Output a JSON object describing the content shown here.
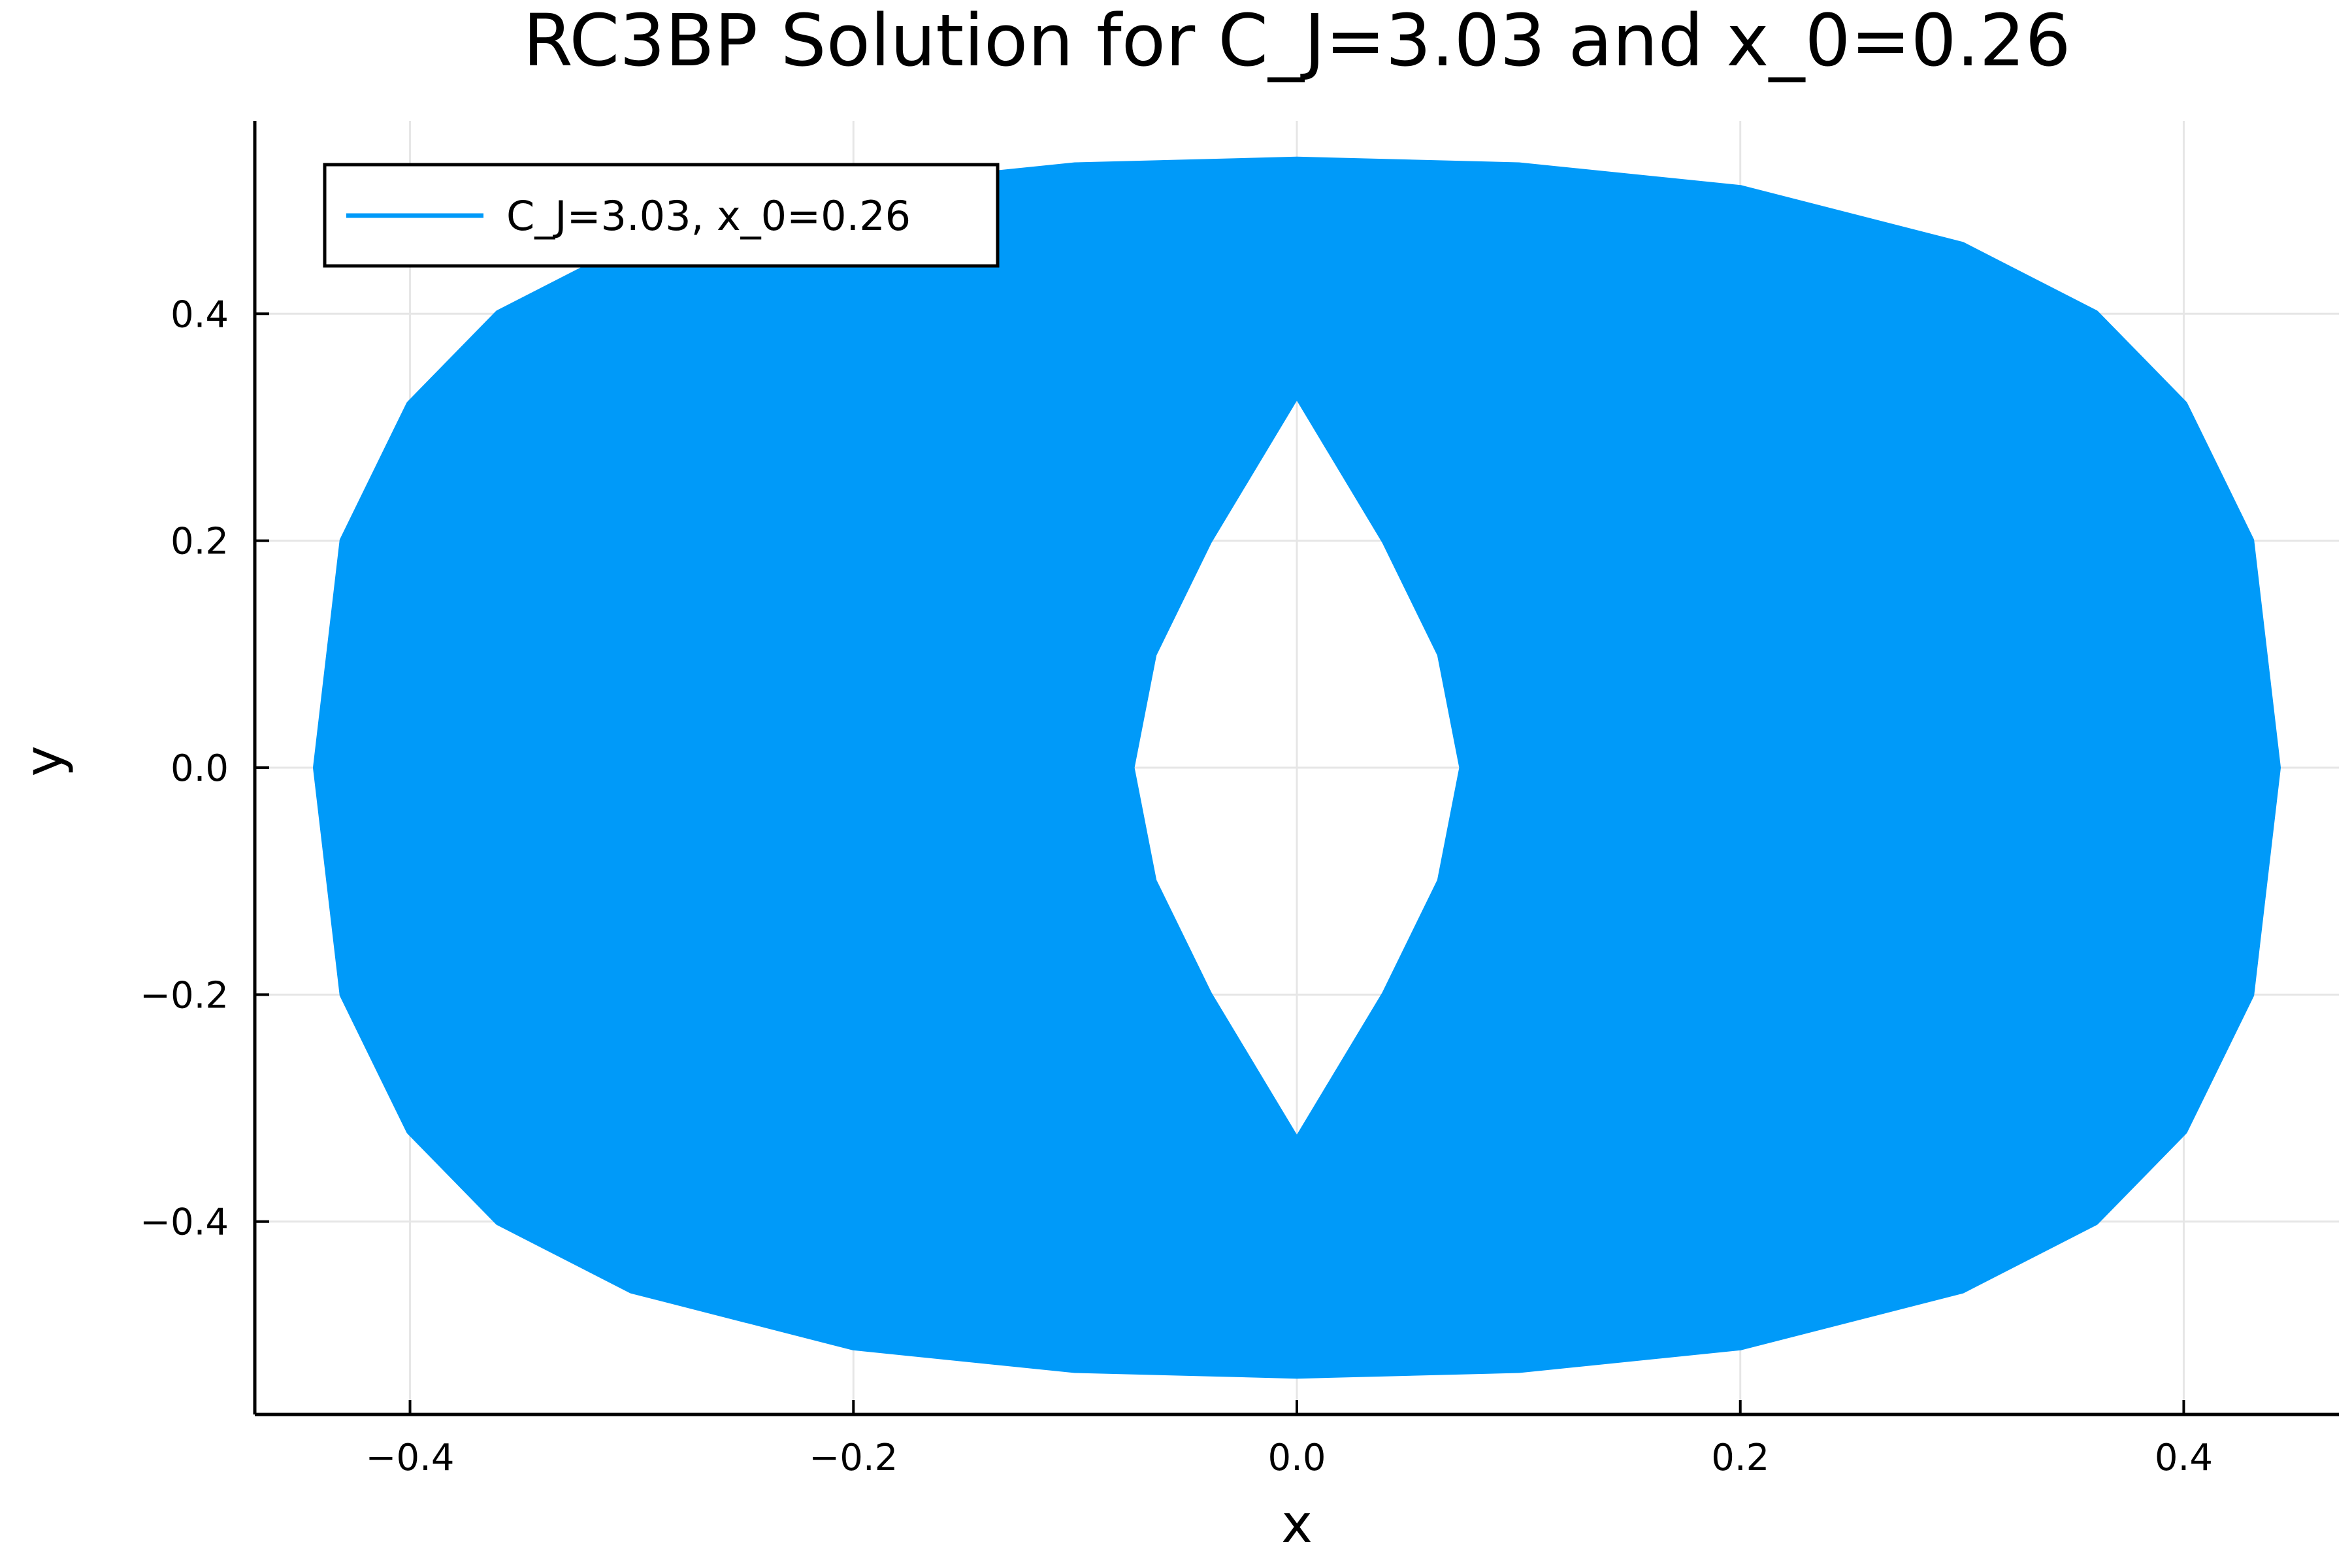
{
  "chart_data": {
    "type": "line",
    "title": "RC3BP Solution for C_J=3.03 and x_0=0.26",
    "xlabel": "x",
    "ylabel": "y",
    "xlim": [
      -0.47,
      0.47
    ],
    "ylim": [
      -0.57,
      0.57
    ],
    "xticks": [
      -0.4,
      -0.2,
      0.0,
      0.2,
      0.4
    ],
    "yticks": [
      -0.4,
      -0.2,
      0.0,
      0.2,
      0.4
    ],
    "xtick_labels": [
      "−0.4",
      "−0.2",
      "0.0",
      "0.2",
      "0.4"
    ],
    "ytick_labels": [
      "−0.4",
      "−0.2",
      "0.0",
      "0.2",
      "0.4"
    ],
    "grid": true,
    "legend_position": "top-left",
    "series": [
      {
        "name": "C_J=3.03, x_0=0.26",
        "color": "#009af9",
        "outer_boundary": {
          "x": [
            0.0,
            0.1,
            0.2,
            0.3,
            0.36,
            0.4,
            0.43,
            0.442,
            0.43,
            0.4,
            0.36,
            0.3,
            0.2,
            0.1,
            0.0,
            -0.1,
            -0.2,
            -0.3,
            -0.36,
            -0.4,
            -0.43,
            -0.442,
            -0.43,
            -0.4,
            -0.36,
            -0.3,
            -0.2,
            -0.1
          ],
          "y": [
            0.535,
            0.53,
            0.51,
            0.46,
            0.4,
            0.32,
            0.2,
            0.0,
            -0.2,
            -0.32,
            -0.4,
            -0.46,
            -0.51,
            -0.53,
            -0.535,
            -0.53,
            -0.51,
            -0.46,
            -0.4,
            -0.32,
            -0.2,
            0.0,
            0.2,
            0.32,
            0.4,
            0.46,
            0.51,
            0.53
          ]
        },
        "inner_hole": {
          "x": [
            0.0,
            0.04,
            0.065,
            0.075,
            0.065,
            0.04,
            0.0,
            -0.04,
            -0.065,
            -0.075,
            -0.065,
            -0.04
          ],
          "y": [
            0.33,
            0.2,
            0.1,
            0.0,
            -0.1,
            -0.2,
            -0.33,
            -0.2,
            -0.1,
            0.0,
            0.1,
            0.2
          ]
        }
      }
    ]
  }
}
